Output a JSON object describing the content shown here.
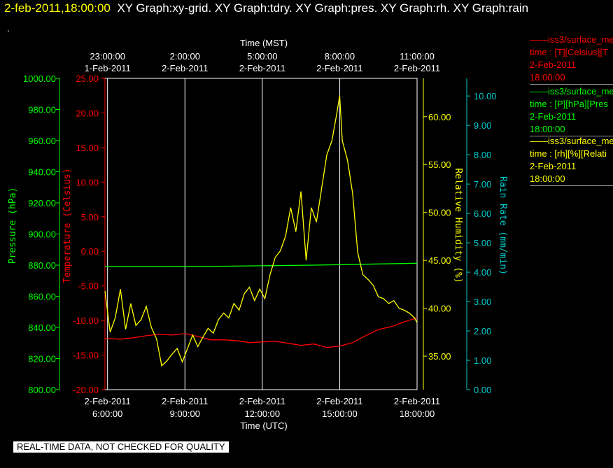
{
  "header": {
    "timestamp": "2-feb-2011,18:00:00",
    "titles": "XY Graph:xy-grid.  XY Graph:tdry.  XY Graph:pres.  XY Graph:rh.  XY Graph:rain",
    "marker": "."
  },
  "legend": [
    {
      "line1": "iss3/surface_me",
      "line2": "time : [T][Celsius][T",
      "line3": "2-Feb-2011",
      "line4": "18:00:00",
      "color": "#ff0000"
    },
    {
      "line1": "iss3/surface_me",
      "line2": "time : [P][hPa][Pres",
      "line3": "2-Feb-2011",
      "line4": "18:00:00",
      "color": "#00ff00"
    },
    {
      "line1": "iss3/surface_me",
      "line2": "time : [rh][%][Relati",
      "line3": "2-Feb-2011",
      "line4": "18:00:00",
      "color": "#ffff00"
    }
  ],
  "footer": "REAL-TIME DATA, NOT CHECKED FOR QUALITY",
  "chart_data": {
    "type": "line",
    "top_axis_title": "Time (MST)",
    "bottom_axis_title": "Time (UTC)",
    "x_range_utc_hours": [
      5.9,
      18.0
    ],
    "bottom_ticks": [
      {
        "hour": 6,
        "date": "2-Feb-2011",
        "time": "6:00:00"
      },
      {
        "hour": 9,
        "date": "2-Feb-2011",
        "time": "9:00:00"
      },
      {
        "hour": 12,
        "date": "2-Feb-2011",
        "time": "12:00:00"
      },
      {
        "hour": 15,
        "date": "2-Feb-2011",
        "time": "15:00:00"
      },
      {
        "hour": 18,
        "date": "2-Feb-2011",
        "time": "18:00:00"
      }
    ],
    "top_ticks": [
      {
        "hour": 6,
        "time": "23:00:00",
        "date": "1-Feb-2011"
      },
      {
        "hour": 9,
        "time": "2:00:00",
        "date": "2-Feb-2011"
      },
      {
        "hour": 12,
        "time": "5:00:00",
        "date": "2-Feb-2011"
      },
      {
        "hour": 15,
        "time": "8:00:00",
        "date": "2-Feb-2011"
      },
      {
        "hour": 18,
        "time": "11:00:00",
        "date": "2-Feb-2011"
      }
    ],
    "grid": true,
    "axes": [
      {
        "id": "pres",
        "label": "Pressure (hPa)",
        "color": "#00ff00",
        "range": [
          800,
          1000
        ],
        "ticks": [
          "800.00",
          "820.00",
          "840.00",
          "860.00",
          "880.00",
          "900.00",
          "920.00",
          "940.00",
          "960.00",
          "980.00",
          "1000.00"
        ]
      },
      {
        "id": "tdry",
        "label": "Temperature (Celsius)",
        "color": "#ff0000",
        "range": [
          -20,
          25
        ],
        "ticks": [
          "-20.00",
          "-15.00",
          "-10.00",
          "-5.00",
          "0.00",
          "5.00",
          "10.00",
          "15.00",
          "20.00",
          "25.00"
        ]
      },
      {
        "id": "rh",
        "label": "Relative Humidity (%)",
        "color": "#ffff00",
        "range": [
          31.5,
          64
        ],
        "ticks": [
          "35.00",
          "40.00",
          "45.00",
          "50.00",
          "55.00",
          "60.00"
        ]
      },
      {
        "id": "rain",
        "label": "Rain Rate (mm/min)",
        "color": "#00cccc",
        "range": [
          0,
          10.6
        ],
        "ticks": [
          "0.00",
          "1.00",
          "2.00",
          "3.00",
          "4.00",
          "5.00",
          "6.00",
          "7.00",
          "8.00",
          "9.00",
          "10.00"
        ]
      }
    ],
    "series": [
      {
        "axis": "tdry",
        "color": "#ff0000",
        "x": [
          5.9,
          6.5,
          7.0,
          7.5,
          8.0,
          8.5,
          9.0,
          9.5,
          10.0,
          10.5,
          11.0,
          11.5,
          12.0,
          12.5,
          13.0,
          13.5,
          14.0,
          14.5,
          15.0,
          15.5,
          16.0,
          16.5,
          17.0,
          17.5,
          18.0
        ],
        "y": [
          -12.6,
          -12.7,
          -12.5,
          -12.2,
          -12.0,
          -12.1,
          -11.9,
          -12.3,
          -12.8,
          -12.8,
          -12.9,
          -13.2,
          -13.1,
          -13.0,
          -13.3,
          -13.6,
          -13.4,
          -13.9,
          -13.7,
          -13.2,
          -12.2,
          -11.3,
          -10.9,
          -10.2,
          -9.6
        ]
      },
      {
        "axis": "pres",
        "color": "#00ff00",
        "x": [
          5.9,
          8.0,
          10.0,
          12.0,
          14.0,
          16.0,
          18.0
        ],
        "y": [
          879.0,
          879.0,
          879.2,
          879.6,
          880.0,
          880.6,
          881.2
        ]
      },
      {
        "axis": "rh",
        "color": "#ffff00",
        "x": [
          5.9,
          6.1,
          6.3,
          6.5,
          6.7,
          6.9,
          7.1,
          7.3,
          7.5,
          7.7,
          7.9,
          8.1,
          8.3,
          8.5,
          8.7,
          8.9,
          9.1,
          9.3,
          9.5,
          9.7,
          9.9,
          10.1,
          10.3,
          10.5,
          10.7,
          10.9,
          11.1,
          11.3,
          11.5,
          11.7,
          11.9,
          12.1,
          12.3,
          12.5,
          12.7,
          12.9,
          13.1,
          13.3,
          13.5,
          13.7,
          13.9,
          14.1,
          14.3,
          14.5,
          14.7,
          14.9,
          15.0,
          15.1,
          15.3,
          15.5,
          15.7,
          15.9,
          16.1,
          16.3,
          16.5,
          16.7,
          16.9,
          17.1,
          17.3,
          17.5,
          17.7,
          17.9,
          18.0
        ],
        "y": [
          41.8,
          37.5,
          39.0,
          42.0,
          37.8,
          40.5,
          38.2,
          38.8,
          40.2,
          38.0,
          36.8,
          34.0,
          34.5,
          35.2,
          35.8,
          34.4,
          35.8,
          37.2,
          36.0,
          37.0,
          37.9,
          37.4,
          38.8,
          39.5,
          39.0,
          40.5,
          39.8,
          41.5,
          42.2,
          40.8,
          42.0,
          41.0,
          43.5,
          45.3,
          46.0,
          47.5,
          50.5,
          48.0,
          52.2,
          45.0,
          50.5,
          49.0,
          52.5,
          56.0,
          57.5,
          60.5,
          62.2,
          57.5,
          55.5,
          52.0,
          45.8,
          43.5,
          43.0,
          42.4,
          41.2,
          41.0,
          40.5,
          40.8,
          40.0,
          39.8,
          39.5,
          39.0,
          38.5
        ]
      },
      {
        "axis": "rain",
        "color": "#00cccc",
        "x": [],
        "y": []
      }
    ]
  }
}
